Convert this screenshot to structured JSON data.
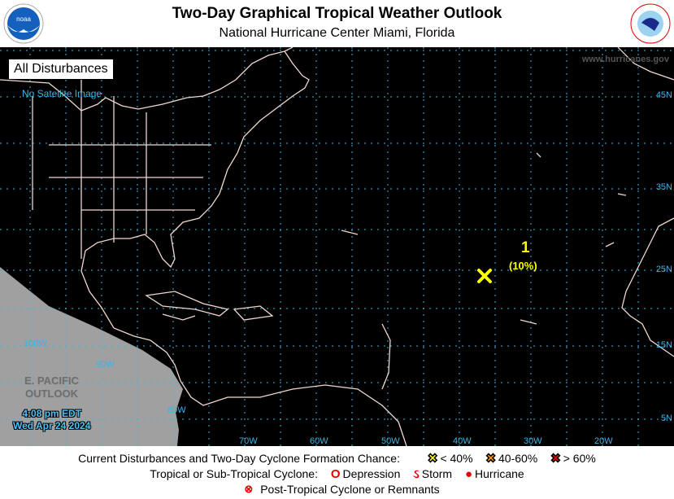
{
  "header": {
    "title": "Two-Day Graphical Tropical Weather Outlook",
    "subtitle": "National Hurricane Center  Miami, Florida",
    "left_logo": "NOAA",
    "right_logo": "NATIONAL WEATHER SERVICE"
  },
  "map": {
    "panel_label": "All Disturbances",
    "no_satellite": "No Satellite Image",
    "website": "www.hurricanes.gov",
    "lat_labels": [
      "45N",
      "35N",
      "25N",
      "15N",
      "5N"
    ],
    "lon_labels": [
      "70W",
      "60W",
      "50W",
      "40W",
      "30W",
      "20W"
    ],
    "pacific_lon_labels": [
      "100W",
      "90W",
      "80W"
    ],
    "epac_line1": "E. PACIFIC",
    "epac_line2": "OUTLOOK",
    "time": "4:08 pm EDT",
    "date": "Wed Apr 24 2024",
    "colors": {
      "ocean": "#000000",
      "grid": "#3cb4e6",
      "coast": "#f0d8d0",
      "pacific": "#a0a0a0"
    }
  },
  "disturbances": [
    {
      "number": "1",
      "chance": "(10%)",
      "marker": "x-icon",
      "color": "#ffff00",
      "lat": 24,
      "lon": -36
    }
  ],
  "legend": {
    "row1_label": "Current Disturbances and Two-Day Cyclone Formation Chance:",
    "low": {
      "label": "< 40%",
      "color": "#ffff00"
    },
    "mid": {
      "label": "40-60%",
      "color": "#ff9900"
    },
    "high": {
      "label": "> 60%",
      "color": "#e60000"
    },
    "row2_label": "Tropical or Sub-Tropical Cyclone:",
    "depression": "Depression",
    "storm": "Storm",
    "hurricane": "Hurricane",
    "post": "Post-Tropical Cyclone or Remnants"
  }
}
